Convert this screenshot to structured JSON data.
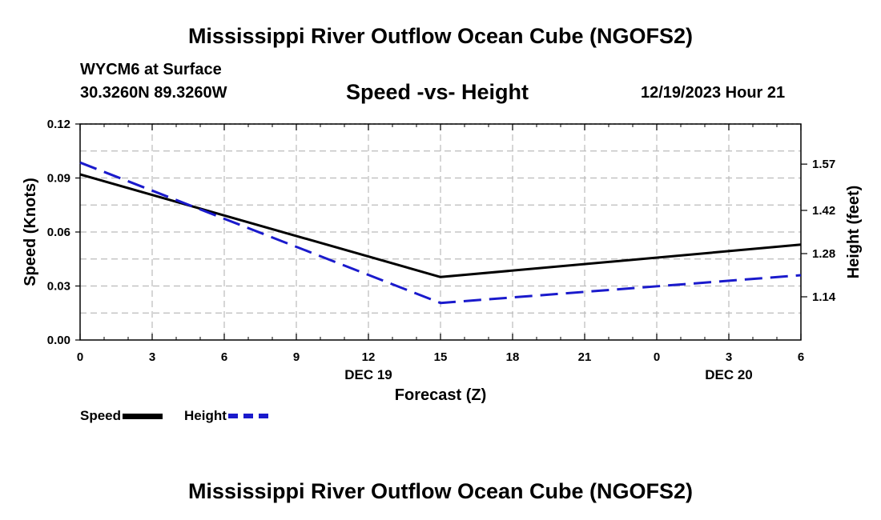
{
  "header": {
    "title": "Mississippi River Outflow Ocean Cube (NGOFS2)",
    "station": "WYCM6 at Surface",
    "coords": "30.3260N  89.3260W",
    "subtitle": "Speed -vs- Height",
    "datetime": "12/19/2023 Hour 21"
  },
  "footer": {
    "title": "Mississippi River Outflow Ocean Cube (NGOFS2)"
  },
  "legend": {
    "speed_label": "Speed",
    "height_label": "Height"
  },
  "colors": {
    "speed": "#000000",
    "height": "#1a1acc",
    "grid": "#bbbbbb"
  },
  "chart_data": {
    "type": "line",
    "title": "Speed -vs- Height",
    "xlabel": "Forecast (Z)",
    "ylabel_left": "Speed (Knots)",
    "ylabel_right": "Height (feet)",
    "x_range_hours": [
      0,
      30
    ],
    "x_ticks": [
      {
        "hour": 0,
        "label": "0"
      },
      {
        "hour": 3,
        "label": "3"
      },
      {
        "hour": 6,
        "label": "6"
      },
      {
        "hour": 9,
        "label": "9"
      },
      {
        "hour": 12,
        "label": "12"
      },
      {
        "hour": 15,
        "label": "15"
      },
      {
        "hour": 18,
        "label": "18"
      },
      {
        "hour": 21,
        "label": "21"
      },
      {
        "hour": 24,
        "label": "0"
      },
      {
        "hour": 27,
        "label": "3"
      },
      {
        "hour": 30,
        "label": "6"
      }
    ],
    "date_labels": [
      {
        "hour": 12,
        "label": "DEC 19"
      },
      {
        "hour": 27,
        "label": "DEC 20"
      }
    ],
    "ylim_left": [
      0,
      0.12
    ],
    "y_ticks_left": [
      "0.00",
      "0.03",
      "0.06",
      "0.09",
      "0.12"
    ],
    "ylim_right": [
      1.0,
      1.7
    ],
    "y_ticks_right": [
      "1.14",
      "1.28",
      "1.42",
      "1.57"
    ],
    "grid": true,
    "series": [
      {
        "name": "Speed",
        "axis": "left",
        "style": "solid",
        "x": [
          0,
          15,
          30
        ],
        "values": [
          0.092,
          0.035,
          0.053
        ]
      },
      {
        "name": "Height",
        "axis": "right",
        "style": "dashed",
        "x": [
          0,
          15,
          30
        ],
        "values": [
          1.575,
          1.12,
          1.21
        ]
      }
    ]
  }
}
